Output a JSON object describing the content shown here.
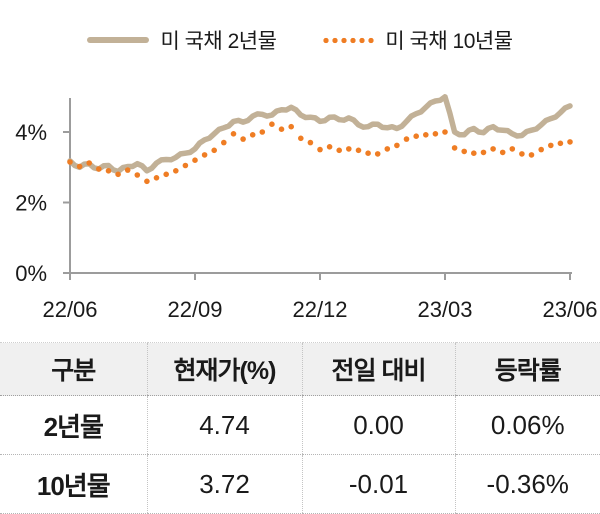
{
  "legend": {
    "items": [
      {
        "label": "미 국채 2년물",
        "marker": "line-swatch-icon",
        "color": "#c2b197"
      },
      {
        "label": "미 국채 10년물",
        "marker": "dots-swatch-icon",
        "color": "#ef7d24"
      }
    ]
  },
  "chart_data": {
    "type": "line",
    "title": "",
    "xlabel": "",
    "ylabel": "",
    "x_tick_labels": [
      "22/06",
      "22/09",
      "22/12",
      "23/03",
      "23/06"
    ],
    "x_tick_indices": [
      0,
      13,
      26,
      39,
      52
    ],
    "y_ticks": [
      0,
      2,
      4
    ],
    "y_tick_labels": [
      "0%",
      "2%",
      "4%"
    ],
    "ylim": [
      0,
      4.96
    ],
    "grid": false,
    "legend_position": "top-center",
    "x_unit": "weekly points from 2022-06 to 2023-06",
    "series": [
      {
        "name": "미 국채 2년물",
        "style": "solid",
        "color": "#c2b197",
        "values": [
          3.18,
          3.0,
          3.1,
          2.95,
          3.05,
          2.88,
          3.02,
          3.1,
          2.9,
          3.12,
          3.22,
          3.28,
          3.4,
          3.52,
          3.78,
          3.95,
          4.12,
          4.3,
          4.28,
          4.45,
          4.5,
          4.48,
          4.63,
          4.7,
          4.48,
          4.42,
          4.3,
          4.42,
          4.35,
          4.4,
          4.2,
          4.15,
          4.22,
          4.12,
          4.1,
          4.3,
          4.52,
          4.7,
          4.88,
          5.0,
          4.0,
          3.92,
          4.1,
          3.98,
          4.15,
          4.05,
          3.95,
          3.9,
          4.05,
          4.2,
          4.38,
          4.55,
          4.74
        ]
      },
      {
        "name": "미 국채 10년물",
        "style": "dotted",
        "color": "#ef7d24",
        "values": [
          3.15,
          3.02,
          3.12,
          2.95,
          2.9,
          2.8,
          2.92,
          2.78,
          2.6,
          2.7,
          2.8,
          2.9,
          3.05,
          3.2,
          3.35,
          3.48,
          3.7,
          3.95,
          3.8,
          3.92,
          4.0,
          4.22,
          4.08,
          4.15,
          3.82,
          3.7,
          3.5,
          3.58,
          3.48,
          3.52,
          3.48,
          3.4,
          3.38,
          3.52,
          3.62,
          3.8,
          3.88,
          3.92,
          3.95,
          4.0,
          3.55,
          3.45,
          3.4,
          3.42,
          3.52,
          3.42,
          3.52,
          3.38,
          3.35,
          3.5,
          3.62,
          3.68,
          3.72
        ]
      }
    ]
  },
  "table": {
    "headers": [
      "구분",
      "현재가(%)",
      "전일 대비",
      "등락률"
    ],
    "rows": [
      [
        "2년물",
        "4.74",
        "0.00",
        "0.06%"
      ],
      [
        "10년물",
        "3.72",
        "-0.01",
        "-0.36%"
      ]
    ]
  },
  "colors": {
    "line_2y": "#c2b197",
    "dot_10y": "#ef7d24",
    "axis": "#9c9c9c",
    "text": "#1a1a1a",
    "table_header_bg": "#f0f0f0",
    "table_border": "#b5b5b5"
  }
}
